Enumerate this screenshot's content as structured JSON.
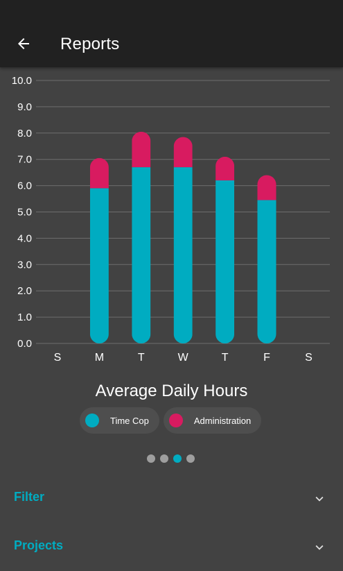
{
  "appbar": {
    "title": "Reports"
  },
  "icons": {
    "back": "arrow-left-icon",
    "expand": "chevron-down-icon"
  },
  "colors": {
    "background": "#424242",
    "appbar": "#212121",
    "time_cop": "#00acc1",
    "administration": "#d81b60",
    "grid": "#6e6e6e",
    "accent": "#00acc1"
  },
  "chart_data": {
    "type": "bar",
    "stacked": true,
    "title": "Average Daily Hours",
    "categories": [
      "S",
      "M",
      "T",
      "W",
      "T",
      "F",
      "S"
    ],
    "series": [
      {
        "name": "Time Cop",
        "color": "#00acc1",
        "values": [
          0,
          5.9,
          6.7,
          6.7,
          6.2,
          5.45,
          0
        ]
      },
      {
        "name": "Administration",
        "color": "#d81b60",
        "values": [
          0,
          1.15,
          1.35,
          1.15,
          0.9,
          0.95,
          0
        ]
      }
    ],
    "yticks": [
      "0.0",
      "1.0",
      "2.0",
      "3.0",
      "4.0",
      "5.0",
      "6.0",
      "7.0",
      "8.0",
      "9.0",
      "10.0"
    ],
    "ylim": [
      0,
      10
    ],
    "grid": true
  },
  "legend": [
    {
      "label": "Time Cop",
      "color": "#00acc1"
    },
    {
      "label": "Administration",
      "color": "#d81b60"
    }
  ],
  "pager": {
    "count": 4,
    "active": 2
  },
  "sections": [
    {
      "label": "Filter"
    },
    {
      "label": "Projects"
    }
  ]
}
